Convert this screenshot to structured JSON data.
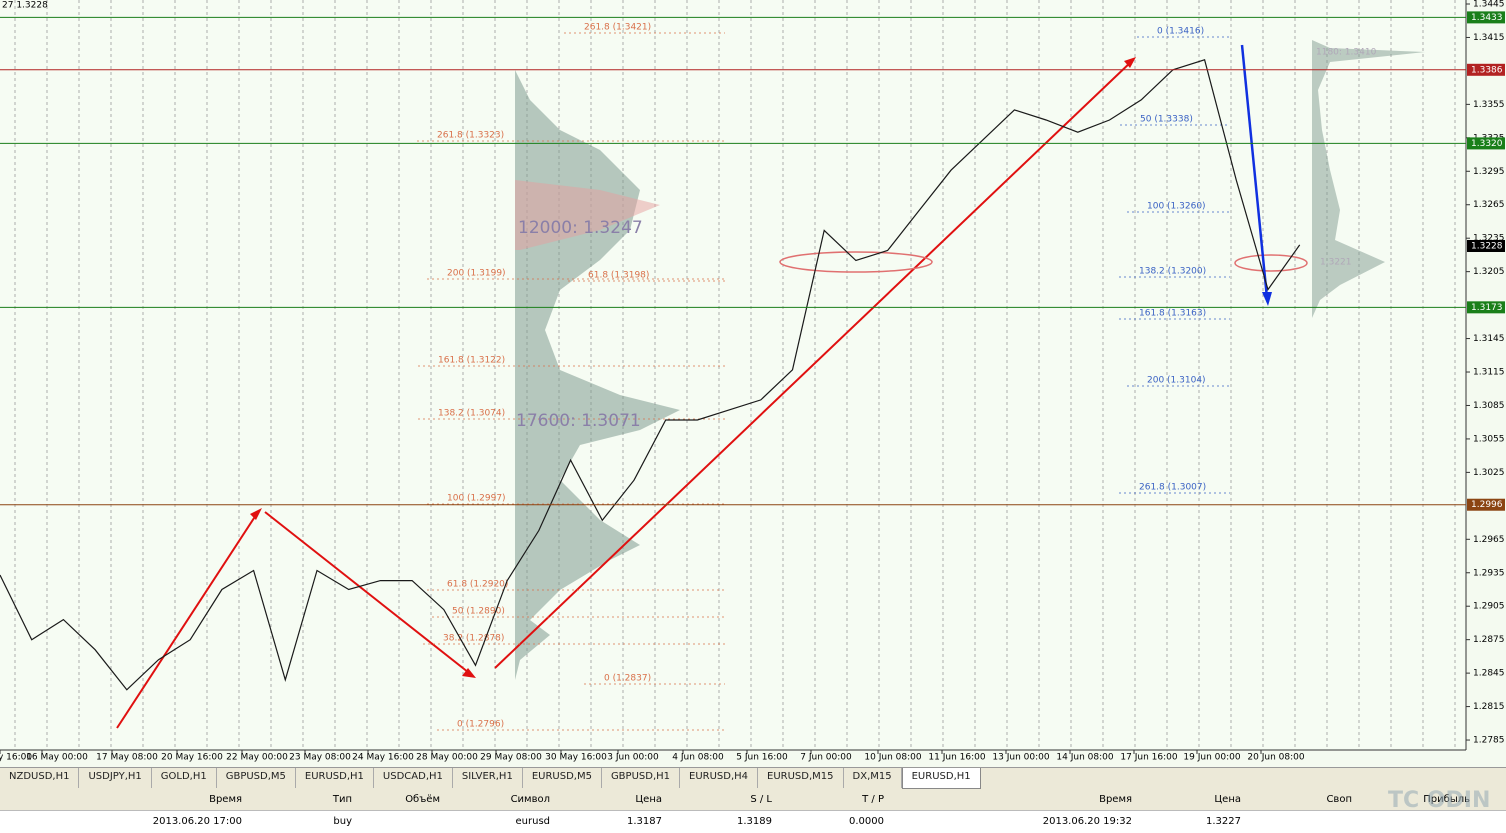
{
  "header": {
    "symbol_price": "27 1.3228"
  },
  "price_axis": {
    "ticks": [
      1.3445,
      1.3415,
      1.3355,
      1.3325,
      1.3295,
      1.3265,
      1.3235,
      1.3205,
      1.3145,
      1.3115,
      1.3085,
      1.3055,
      1.3025,
      1.2965,
      1.2935,
      1.2905,
      1.2875,
      1.2845,
      1.2815,
      1.2785
    ]
  },
  "levels": [
    {
      "price": 1.3433,
      "color": "#1a7f1a"
    },
    {
      "price": 1.3386,
      "color": "#b22222"
    },
    {
      "price": {
        "value": 1.332,
        "label": "1.3320"
      },
      "color": "#1a7f1a"
    },
    {
      "price": 1.3173,
      "color": "#1a7f1a"
    },
    {
      "price": 1.2996,
      "color": "#8b4513"
    },
    {
      "price": 1.3228,
      "color": "#000000"
    }
  ],
  "time_axis": {
    "labels": [
      "y 16:00",
      "16 May 00:00",
      "17 May 08:00",
      "20 May 16:00",
      "22 May 00:00",
      "23 May 08:00",
      "24 May 16:00",
      "28 May 00:00",
      "29 May 08:00",
      "30 May 16:00",
      "3 Jun 00:00",
      "4 Jun 08:00",
      "5 Jun 16:00",
      "7 Jun 00:00",
      "10 Jun 08:00",
      "11 Jun 16:00",
      "13 Jun 00:00",
      "14 Jun 08:00",
      "17 Jun 16:00",
      "19 Jun 00:00",
      "20 Jun 08:00"
    ]
  },
  "fib_left": {
    "color": "#d9704a",
    "labels": [
      "261.8 (1.3421)",
      "261.8 (1.3323)",
      "200 (1.3199)",
      "161.8 (1.3122)",
      "138.2 (1.3074)",
      "100 (1.2997)",
      "61.8 (1.2920)",
      "50 (1.2890)",
      "38.2 (1.2878)",
      "0 (1.2796)",
      "61.8 (1.3198)",
      "0 (1.2837)"
    ]
  },
  "fib_right": {
    "color": "#3a62c4",
    "labels": [
      "0 (1.3416)",
      "50 (1.3338)",
      "100 (1.3260)",
      "138.2 (1.3200)",
      "161.8 (1.3163)",
      "200 (1.3104)",
      "261.8 (1.3007)"
    ]
  },
  "profile_labels": [
    "12000: 1.3247",
    "17600: 1.3071",
    "1180: 1.3410",
    "1.3221"
  ],
  "price_path": [
    1.2933,
    1.2875,
    1.2893,
    1.2866,
    1.283,
    1.2857,
    1.2875,
    1.292,
    1.2937,
    1.2839,
    1.2937,
    1.292,
    1.2928,
    1.2928,
    1.2902,
    1.2852,
    1.2928,
    1.2973,
    1.3036,
    1.2982,
    1.3018,
    1.3072,
    1.3072,
    1.3081,
    1.309,
    1.3117,
    1.3242,
    1.3215,
    1.3224,
    1.326,
    1.3296,
    1.3323,
    1.335,
    1.3341,
    1.333,
    1.3341,
    1.3359,
    1.3386,
    1.3395,
    1.3287,
    1.3189,
    1.3229
  ],
  "tabs": {
    "items": [
      "NZDUSD,H1",
      "USDJPY,H1",
      "GOLD,H1",
      "GBPUSD,M5",
      "EURUSD,H1",
      "USDCAD,H1",
      "SILVER,H1",
      "EURUSD,M5",
      "GBPUSD,H1",
      "EURUSD,H4",
      "EURUSD,M15",
      "DX,M15",
      "EURUSD,H1"
    ],
    "active": 12
  },
  "table": {
    "headers": [
      "Время",
      "Тип",
      "Объём",
      "Символ",
      "Цена",
      "S / L",
      "T / P",
      "Время",
      "Цена",
      "Своп",
      "Прибыль"
    ],
    "rows": [
      [
        "2013.06.20 17:00",
        "buy",
        null,
        "eurusd",
        "1.3187",
        "1.3189",
        "0.0000",
        "2013.06.20 19:32",
        "1.3227",
        null,
        null
      ]
    ]
  },
  "watermark": "TC ODIN"
}
